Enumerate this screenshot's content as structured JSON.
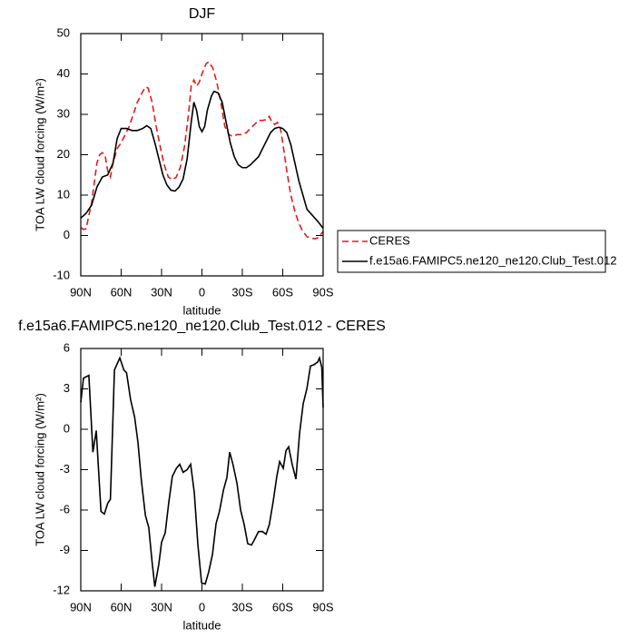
{
  "chart_data": [
    {
      "type": "line",
      "title": "DJF",
      "x_label": "latitude",
      "y_label": "TOA LW cloud forcing (W/m²)",
      "xlim": [
        90,
        -90
      ],
      "ylim": [
        -10,
        50
      ],
      "xticks": [
        {
          "value": 90,
          "label": "90N"
        },
        {
          "value": 60,
          "label": "60N"
        },
        {
          "value": 30,
          "label": "30N"
        },
        0,
        {
          "value": -30,
          "label": "30S"
        },
        {
          "value": -60,
          "label": "60S"
        },
        {
          "value": -90,
          "label": "90S"
        }
      ],
      "yticks": [
        -10,
        0,
        10,
        20,
        30,
        40,
        50
      ],
      "legend": "outside-right",
      "series": [
        {
          "name": "CERES",
          "color": "#e31a1c",
          "dashed": true,
          "x": [
            90,
            88,
            86,
            84,
            82,
            80,
            78,
            76,
            74,
            72,
            70,
            68,
            66,
            63,
            60,
            57,
            54,
            51,
            48,
            45,
            42,
            40,
            37,
            34,
            31,
            28,
            25,
            22,
            19,
            16,
            13,
            10,
            8,
            6,
            4,
            2,
            0,
            -3,
            -5,
            -8,
            -11,
            -14,
            -17,
            -20,
            -23,
            -26,
            -30,
            -33,
            -36,
            -39,
            -42,
            -45,
            -48,
            -50,
            -52,
            -54,
            -56,
            -58,
            -60,
            -63,
            -66,
            -69,
            -72,
            -75,
            -78,
            -80,
            -82,
            -84,
            -86,
            -88,
            -90
          ],
          "values": [
            2,
            1.5,
            1.7,
            5,
            8,
            13,
            18,
            20,
            20.5,
            20,
            16,
            14.5,
            18,
            21.5,
            23,
            25,
            27,
            30,
            33,
            35,
            36.8,
            36.5,
            33,
            27,
            22,
            17.5,
            14.5,
            13.8,
            14.5,
            17,
            22,
            30,
            37,
            38.5,
            37,
            38,
            40,
            42.5,
            43,
            41.5,
            38,
            33,
            27,
            25,
            24.5,
            25,
            25,
            25.5,
            26.5,
            27.5,
            28.5,
            28.5,
            28.7,
            29.5,
            28,
            27.5,
            28,
            27,
            23,
            16,
            10,
            6,
            3,
            1,
            -0.3,
            -0.5,
            -0.7,
            -0.8,
            -0.6,
            0.2,
            1
          ]
        },
        {
          "name": "f.e15a6.FAMIPC5.ne120_ne120.Club_Test.012",
          "color": "#000000",
          "dashed": false,
          "x": [
            90,
            86,
            82,
            78,
            74,
            70,
            66,
            63,
            60,
            56,
            52,
            48,
            44,
            41,
            38,
            35,
            32,
            29,
            26,
            23,
            20,
            17,
            14,
            11,
            8,
            6,
            4,
            2,
            0,
            -2,
            -4,
            -7,
            -9,
            -12,
            -15,
            -18,
            -21,
            -24,
            -27,
            -30,
            -33,
            -36,
            -39,
            -42,
            -45,
            -48,
            -51,
            -54,
            -57,
            -60,
            -63,
            -66,
            -69,
            -72,
            -75,
            -78,
            -82,
            -86,
            -90
          ],
          "values": [
            4.3,
            5.5,
            7.5,
            12,
            14.5,
            15,
            18,
            24,
            26.5,
            26.5,
            26,
            26,
            26.5,
            27.2,
            26.5,
            23,
            19,
            15,
            12.5,
            11.2,
            11,
            12,
            14,
            19,
            28,
            33,
            31,
            27,
            25.7,
            27,
            31,
            34.5,
            35.7,
            35.3,
            33,
            28,
            23,
            19.5,
            17.5,
            16.8,
            16.8,
            17.5,
            18.5,
            19.5,
            21.5,
            23.5,
            25.5,
            26.5,
            26.8,
            26.5,
            25.5,
            22.5,
            18,
            13.5,
            10,
            6.5,
            5,
            3.5,
            1.8
          ]
        }
      ]
    },
    {
      "type": "line",
      "title": "f.e15a6.FAMIPC5.ne120_ne120.Club_Test.012 - CERES",
      "x_label": "latitude",
      "y_label": "TOA LW cloud forcing (W/m²)",
      "xlim": [
        90,
        -90
      ],
      "ylim": [
        -12,
        6
      ],
      "xticks": [
        {
          "value": 90,
          "label": "90N"
        },
        {
          "value": 60,
          "label": "60N"
        },
        {
          "value": 30,
          "label": "30N"
        },
        0,
        {
          "value": -30,
          "label": "30S"
        },
        {
          "value": -60,
          "label": "60S"
        },
        {
          "value": -90,
          "label": "90S"
        }
      ],
      "yticks": [
        -12,
        -9,
        -6,
        -3,
        0,
        3,
        6
      ],
      "color": "#000000",
      "x": [
        90,
        88,
        84,
        81,
        78.5,
        75,
        72.5,
        70,
        68,
        65,
        61,
        58,
        56,
        53,
        50,
        47.5,
        45,
        42,
        39.5,
        37,
        35,
        32,
        30,
        27.3,
        24.6,
        22,
        19,
        16.5,
        14,
        11,
        8.4,
        5.7,
        3,
        0.3,
        -2.4,
        -5,
        -7.8,
        -10.5,
        -13,
        -16,
        -18.5,
        -20.6,
        -23,
        -26,
        -28.7,
        -31.4,
        -34,
        -36.8,
        -39.5,
        -42,
        -45,
        -47.6,
        -50,
        -53,
        -55.6,
        -57.7,
        -60.4,
        -62.4,
        -64.4,
        -67,
        -69.8,
        -72.5,
        -75.2,
        -77.9,
        -80.6,
        -83.3,
        -86,
        -87.3,
        -89,
        -90
      ],
      "values": [
        2.0,
        3.8,
        4.0,
        -1.7,
        -0.1,
        -6.1,
        -6.3,
        -5.5,
        -5.2,
        4.4,
        5.3,
        4.4,
        4.2,
        2.2,
        0.9,
        -1.0,
        -3.8,
        -6.4,
        -7.3,
        -9.9,
        -11.7,
        -10.0,
        -8.4,
        -7.7,
        -5.4,
        -3.5,
        -2.9,
        -2.6,
        -3.2,
        -3.0,
        -2.6,
        -4.7,
        -8.6,
        -11.4,
        -11.5,
        -10.6,
        -9.3,
        -7.0,
        -6.1,
        -4.5,
        -3.6,
        -1.7,
        -2.6,
        -4.0,
        -6.0,
        -7.1,
        -8.5,
        -8.6,
        -8.1,
        -7.6,
        -7.6,
        -7.8,
        -7.1,
        -5.3,
        -3.5,
        -2.4,
        -2.9,
        -1.6,
        -1.3,
        -2.6,
        -3.7,
        -0.3,
        1.9,
        3.0,
        4.7,
        4.8,
        5.0,
        5.3,
        4.6,
        1.6
      ]
    }
  ]
}
